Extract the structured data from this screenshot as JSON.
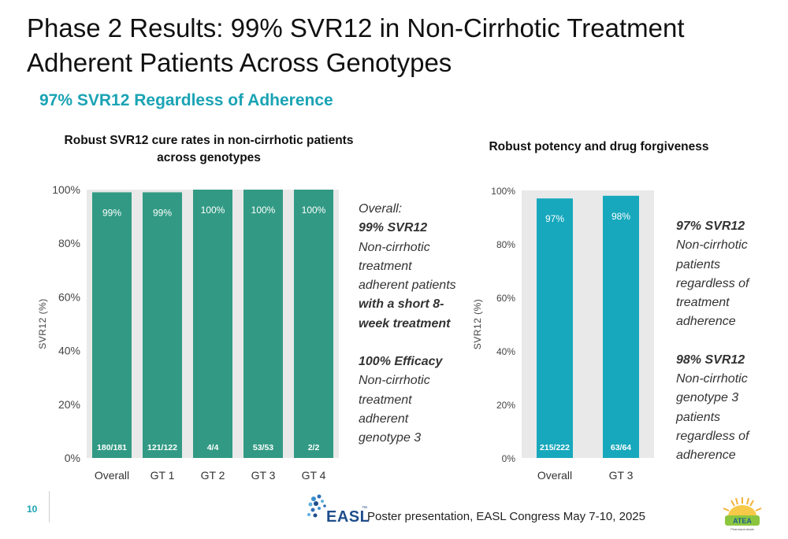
{
  "slide": {
    "title": "Phase 2 Results: 99% SVR12 in Non-Cirrhotic Treatment Adherent Patients Across Genotypes",
    "subtitle": "97% SVR12 Regardless of Adherence",
    "page_number": "10",
    "footer_text": "Poster presentation, EASL Congress May 7-10, 2025",
    "easl_logo_text": "EASL",
    "easl_tm": "™",
    "atea_logo_text": "ATEA",
    "atea_logo_subtext": "Pharmaceuticals"
  },
  "colors": {
    "left_bar": "#329a84",
    "right_bar": "#17a8bd",
    "plot_bg": "#e9e9e9",
    "subtitle": "#1aa3b4"
  },
  "chart_data": [
    {
      "type": "bar",
      "title": "Robust SVR12 cure rates in non-cirrhotic patients across genotypes",
      "ylabel": "SVR12 (%)",
      "ylim": [
        0,
        100
      ],
      "yticks": [
        "0%",
        "20%",
        "40%",
        "60%",
        "80%",
        "100%"
      ],
      "categories": [
        "Overall",
        "GT 1",
        "GT 2",
        "GT 3",
        "GT 4"
      ],
      "values": [
        99,
        99,
        100,
        100,
        100
      ],
      "value_labels": [
        "99%",
        "99%",
        "100%",
        "100%",
        "100%"
      ],
      "n_labels": [
        "180/181",
        "121/122",
        "4/4",
        "53/53",
        "2/2"
      ]
    },
    {
      "type": "bar",
      "title": "Robust potency and drug forgiveness",
      "ylabel": "SVR12 (%)",
      "ylim": [
        0,
        100
      ],
      "yticks": [
        "0%",
        "20%",
        "40%",
        "60%",
        "80%",
        "100%"
      ],
      "categories": [
        "Overall",
        "GT 3"
      ],
      "values": [
        97,
        98
      ],
      "value_labels": [
        "97%",
        "98%"
      ],
      "n_labels": [
        "215/222",
        "63/64"
      ]
    }
  ],
  "notes": {
    "left": {
      "l1": "Overall:",
      "l2": "99% SVR12",
      "l3": "Non-cirrhotic",
      "l4": "treatment",
      "l5": "adherent patients",
      "l6": "with a short 8-",
      "l7": "week treatment",
      "l8": "100% Efficacy",
      "l9": "Non-cirrhotic",
      "l10": "treatment",
      "l11": "adherent",
      "l12": "genotype 3"
    },
    "right": {
      "l1": "97% SVR12",
      "l2": "Non-cirrhotic",
      "l3": "patients",
      "l4": "regardless of",
      "l5": "treatment",
      "l6": "adherence",
      "l7": "98% SVR12",
      "l8": "Non-cirrhotic",
      "l9": "genotype 3",
      "l10": "patients",
      "l11": "regardless of",
      "l12": "adherence"
    }
  }
}
